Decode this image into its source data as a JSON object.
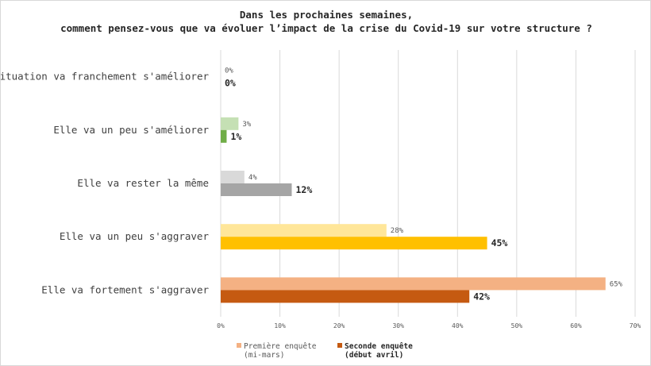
{
  "chart_data": {
    "type": "bar",
    "orientation": "horizontal",
    "title_lines": [
      "Dans les prochaines semaines,",
      "comment pensez-vous que va évoluer l’impact de la crise du Covid-19 sur votre structure ?"
    ],
    "categories": [
      "La situation va franchement s'améliorer",
      "Elle va un peu s'améliorer",
      "Elle va rester la même",
      "Elle va un peu s'aggraver",
      "Elle va fortement s'aggraver"
    ],
    "series": [
      {
        "name_lines": [
          "Première enquête",
          "(mi-mars)"
        ],
        "values": [
          0,
          3,
          4,
          28,
          65
        ],
        "labels": [
          "0%",
          "3%",
          "4%",
          "28%",
          "65%"
        ],
        "legend_color": "#f4b183",
        "colors": [
          "#ffffff",
          "#c5e0b4",
          "#d9d9d9",
          "#ffe699",
          "#f4b183"
        ]
      },
      {
        "name_lines": [
          "Seconde enquête",
          "(début avril)"
        ],
        "values": [
          0,
          1,
          12,
          45,
          42
        ],
        "labels": [
          "0%",
          "1%",
          "12%",
          "45%",
          "42%"
        ],
        "legend_color": "#c55a11",
        "colors": [
          "#ffffff",
          "#70ad47",
          "#a5a5a5",
          "#ffc000",
          "#c55a11"
        ]
      }
    ],
    "xlim": [
      0,
      70
    ],
    "xticks": [
      0,
      10,
      20,
      30,
      40,
      50,
      60,
      70
    ],
    "xtick_labels": [
      "0%",
      "10%",
      "20%",
      "30%",
      "40%",
      "50%",
      "60%",
      "70%"
    ],
    "grid": true,
    "legend_position": "bottom"
  }
}
